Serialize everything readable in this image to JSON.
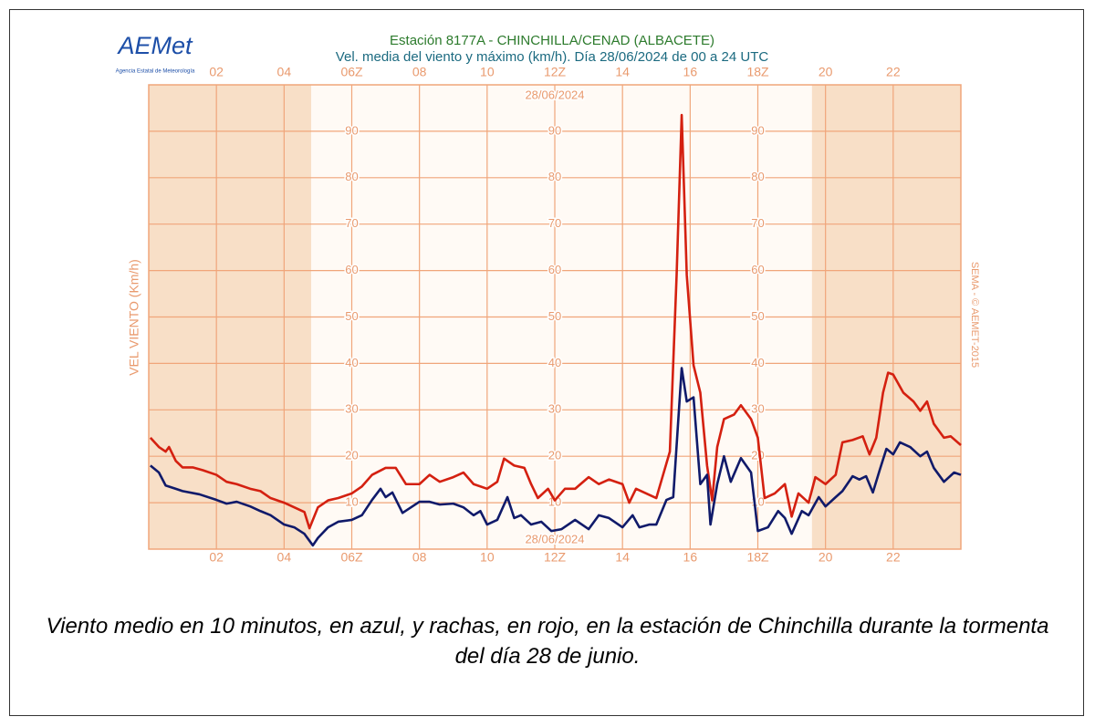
{
  "logo": {
    "name": "AEMet",
    "agency": "Agencia Estatal de Meteorología"
  },
  "chart_data": {
    "type": "line",
    "title": "Estación 8177A - CHINCHILLA/CENAD (ALBACETE)",
    "subtitle": "Vel. media del viento y máximo (km/h). Día 28/06/2024 de 00 a 24 UTC",
    "date_label": "28/06/2024",
    "y_label": "VEL VIENTO (Km/h)",
    "credit": "SEMA - © AEMET-2015",
    "xlim": [
      0,
      24
    ],
    "ylim": [
      0,
      100
    ],
    "xticks": [
      {
        "value": 2,
        "label": "02"
      },
      {
        "value": 4,
        "label": "04"
      },
      {
        "value": 6,
        "label": "06Z"
      },
      {
        "value": 8,
        "label": "08"
      },
      {
        "value": 10,
        "label": "10"
      },
      {
        "value": 12,
        "label": "12Z"
      },
      {
        "value": 14,
        "label": "14"
      },
      {
        "value": 16,
        "label": "16"
      },
      {
        "value": 18,
        "label": "18Z"
      },
      {
        "value": 20,
        "label": "20"
      },
      {
        "value": 22,
        "label": "22"
      }
    ],
    "yticks": [
      10,
      20,
      30,
      40,
      50,
      60,
      70,
      80,
      90
    ],
    "ytick_label_columns": [
      6,
      12,
      18
    ],
    "night_shading": [
      [
        0,
        4.8
      ],
      [
        19.6,
        24
      ]
    ],
    "grid": true,
    "series": [
      {
        "name": "Racha",
        "color": "#d42010",
        "x": [
          0.05,
          0.3,
          0.5,
          0.6,
          0.8,
          1.0,
          1.3,
          1.6,
          2.0,
          2.3,
          2.6,
          3.0,
          3.3,
          3.6,
          4.0,
          4.3,
          4.6,
          4.75,
          5.0,
          5.3,
          5.6,
          6.0,
          6.3,
          6.6,
          7.0,
          7.3,
          7.6,
          8.0,
          8.3,
          8.6,
          9.0,
          9.3,
          9.6,
          10.0,
          10.3,
          10.5,
          10.8,
          11.1,
          11.3,
          11.5,
          11.8,
          12.0,
          12.3,
          12.6,
          13.0,
          13.3,
          13.6,
          14.0,
          14.2,
          14.4,
          14.7,
          15.0,
          15.2,
          15.4,
          15.6,
          15.75,
          15.9,
          16.1,
          16.3,
          16.5,
          16.65,
          16.8,
          17.0,
          17.3,
          17.5,
          17.8,
          18.0,
          18.2,
          18.5,
          18.8,
          19.0,
          19.2,
          19.5,
          19.7,
          20.0,
          20.3,
          20.5,
          20.8,
          21.1,
          21.3,
          21.5,
          21.7,
          21.85,
          22.0,
          22.3,
          22.6,
          22.8,
          23.0,
          23.2,
          23.5,
          23.7,
          24.0
        ],
        "values": [
          24,
          22,
          21,
          22,
          19,
          17.6,
          17.6,
          17,
          16,
          14.5,
          14,
          13,
          12.5,
          11,
          10,
          9,
          8,
          4.5,
          9,
          10.5,
          11,
          12,
          13.5,
          16,
          17.5,
          17.5,
          14,
          14,
          16,
          14.5,
          15.5,
          16.5,
          14,
          13,
          14.5,
          19.5,
          18,
          17.5,
          14,
          11,
          13,
          10.5,
          13,
          13,
          15.5,
          14,
          15,
          14,
          10,
          13,
          12,
          11,
          16,
          21,
          59,
          93.5,
          59,
          39.6,
          33.7,
          18,
          10.5,
          22,
          28,
          29,
          31,
          28,
          24,
          11,
          12,
          14,
          7,
          12,
          10,
          15.5,
          14,
          16,
          23,
          23.5,
          24.3,
          20.4,
          24,
          33.7,
          38,
          37.6,
          33.7,
          31.8,
          29.8,
          31.8,
          27,
          24,
          24.3,
          22.4
        ]
      },
      {
        "name": "Media 10 min",
        "color": "#101a6a",
        "x": [
          0.05,
          0.3,
          0.5,
          0.8,
          1.0,
          1.5,
          2.0,
          2.3,
          2.6,
          3.0,
          3.3,
          3.6,
          4.0,
          4.3,
          4.6,
          4.85,
          5.0,
          5.3,
          5.6,
          6.0,
          6.3,
          6.6,
          6.85,
          7.0,
          7.2,
          7.5,
          8.0,
          8.3,
          8.6,
          9.0,
          9.3,
          9.6,
          9.8,
          10.0,
          10.3,
          10.6,
          10.8,
          11.0,
          11.3,
          11.6,
          11.9,
          12.2,
          12.6,
          13.0,
          13.3,
          13.6,
          14.0,
          14.3,
          14.5,
          14.8,
          15.0,
          15.3,
          15.5,
          15.75,
          15.9,
          16.1,
          16.3,
          16.5,
          16.6,
          16.8,
          17.0,
          17.2,
          17.5,
          17.8,
          18.0,
          18.3,
          18.6,
          18.8,
          19.0,
          19.3,
          19.5,
          19.8,
          20.0,
          20.3,
          20.5,
          20.8,
          21.0,
          21.2,
          21.4,
          21.6,
          21.8,
          22.0,
          22.2,
          22.5,
          22.8,
          23.0,
          23.2,
          23.5,
          23.8,
          24.0
        ],
        "values": [
          18,
          16.5,
          13.7,
          13,
          12.5,
          11.8,
          10.6,
          9.8,
          10.2,
          9.2,
          8.2,
          7.3,
          5.3,
          4.7,
          3.3,
          0.8,
          2.4,
          4.7,
          5.9,
          6.3,
          7.3,
          10.6,
          13,
          11.2,
          12.2,
          7.8,
          10.2,
          10.2,
          9.6,
          9.8,
          9,
          7.3,
          8.2,
          5.3,
          6.3,
          11.2,
          6.7,
          7.3,
          5.3,
          5.9,
          3.9,
          4.3,
          6.3,
          4.3,
          7.3,
          6.7,
          4.7,
          7.3,
          4.7,
          5.3,
          5.3,
          10.6,
          11.2,
          39,
          31.8,
          32.7,
          14,
          16,
          5.3,
          14,
          20,
          14.5,
          19.6,
          16.5,
          3.9,
          4.7,
          8.2,
          6.7,
          3.3,
          8.2,
          7.3,
          11.2,
          9.2,
          11.2,
          12.5,
          15.7,
          15,
          15.7,
          12.2,
          17,
          21.6,
          20.4,
          23,
          22,
          20,
          21,
          17.5,
          14.5,
          16.5,
          16
        ]
      }
    ]
  },
  "caption": "Viento medio en 10 minutos, en azul, y rachas, en rojo, en la estación de Chinchilla durante la tormenta del día 28 de junio."
}
